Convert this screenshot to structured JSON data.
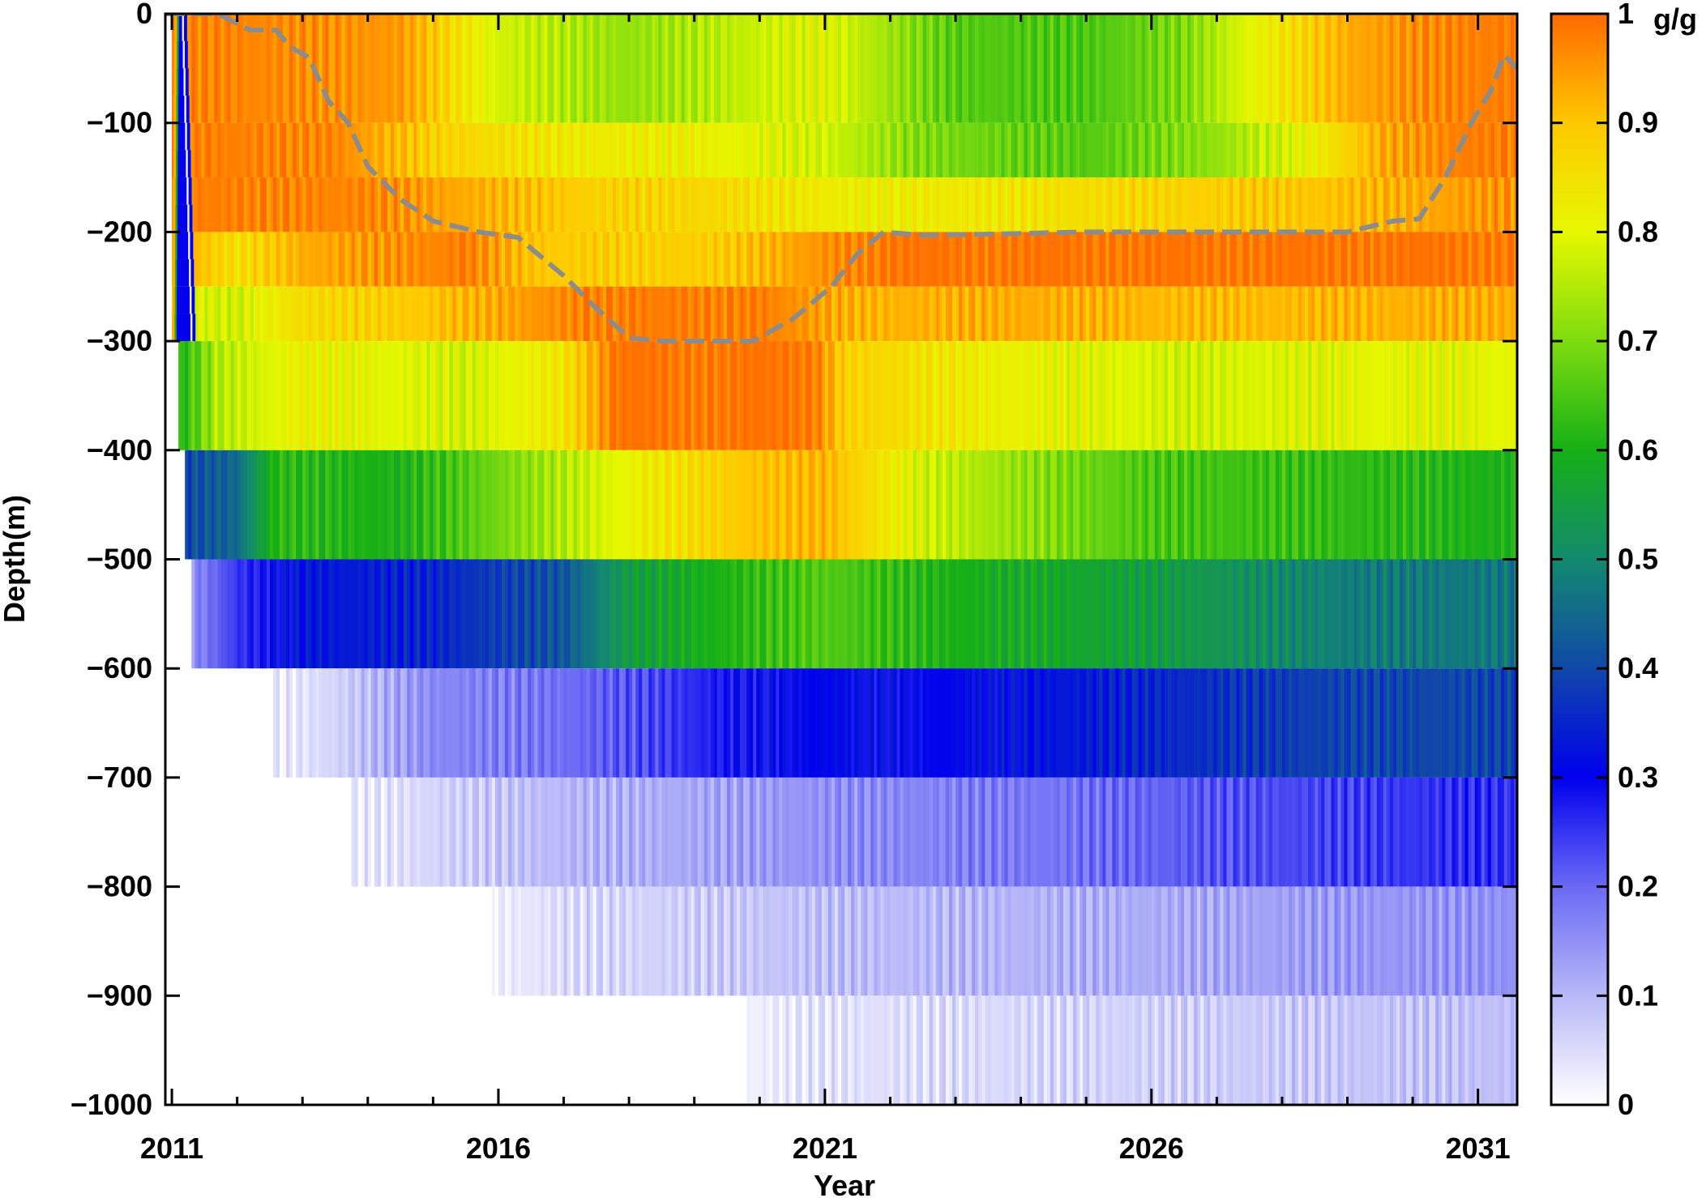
{
  "chart_data": {
    "type": "heatmap",
    "title": "",
    "xlabel": "Year",
    "ylabel": "Depth(m)",
    "x_ticks": [
      "2011",
      "2016",
      "2021",
      "2026",
      "2031"
    ],
    "y_ticks": [
      "0",
      "−100",
      "−200",
      "−300",
      "−400",
      "−500",
      "−600",
      "−700",
      "−800",
      "−900",
      "−1000"
    ],
    "xlim": [
      2010.9,
      2031.6
    ],
    "ylim": [
      -1000,
      0
    ],
    "colorbar": {
      "label": "g/g",
      "ticks": [
        "1",
        "0.9",
        "0.8",
        "0.7",
        "0.6",
        "0.5",
        "0.4",
        "0.3",
        "0.2",
        "0.1",
        "0"
      ],
      "range": [
        0,
        1
      ],
      "colormap": [
        {
          "v": 0.0,
          "color": "#ffffff"
        },
        {
          "v": 0.1,
          "color": "#b8b8f8"
        },
        {
          "v": 0.2,
          "color": "#6a6af4"
        },
        {
          "v": 0.3,
          "color": "#0000ee"
        },
        {
          "v": 0.4,
          "color": "#1048a8"
        },
        {
          "v": 0.5,
          "color": "#138a6e"
        },
        {
          "v": 0.6,
          "color": "#16b016"
        },
        {
          "v": 0.7,
          "color": "#7edc10"
        },
        {
          "v": 0.8,
          "color": "#e6f800"
        },
        {
          "v": 0.9,
          "color": "#ffc800"
        },
        {
          "v": 1.0,
          "color": "#ff6a00"
        }
      ]
    },
    "grid": false,
    "depth_layers": [
      {
        "top": 0,
        "bottom": -100,
        "start_year": 2011.0,
        "key_values": [
          [
            2011.0,
            0.98
          ],
          [
            2014.5,
            0.95
          ],
          [
            2016.0,
            0.78
          ],
          [
            2018.0,
            0.72
          ],
          [
            2021.0,
            0.8
          ],
          [
            2023.0,
            0.66
          ],
          [
            2025.0,
            0.65
          ],
          [
            2026.5,
            0.7
          ],
          [
            2027.5,
            0.8
          ],
          [
            2029.0,
            0.93
          ],
          [
            2030.3,
            0.97
          ],
          [
            2031.6,
            0.98
          ]
        ]
      },
      {
        "top": -100,
        "bottom": -150,
        "start_year": 2011.0,
        "key_values": [
          [
            2011.0,
            0.98
          ],
          [
            2013.5,
            0.97
          ],
          [
            2015.0,
            0.88
          ],
          [
            2017.0,
            0.83
          ],
          [
            2019.0,
            0.82
          ],
          [
            2021.0,
            0.78
          ],
          [
            2022.5,
            0.7
          ],
          [
            2025.0,
            0.66
          ],
          [
            2027.0,
            0.72
          ],
          [
            2028.5,
            0.82
          ],
          [
            2029.5,
            0.93
          ],
          [
            2030.8,
            0.98
          ],
          [
            2031.6,
            0.98
          ]
        ]
      },
      {
        "top": -150,
        "bottom": -200,
        "start_year": 2011.0,
        "key_values": [
          [
            2011.0,
            0.98
          ],
          [
            2014.0,
            0.97
          ],
          [
            2015.5,
            0.93
          ],
          [
            2017.5,
            0.88
          ],
          [
            2019.0,
            0.87
          ],
          [
            2020.5,
            0.84
          ],
          [
            2021.5,
            0.82
          ],
          [
            2024.0,
            0.84
          ],
          [
            2026.5,
            0.88
          ],
          [
            2028.5,
            0.9
          ],
          [
            2030.0,
            0.93
          ],
          [
            2031.6,
            0.96
          ]
        ]
      },
      {
        "top": -200,
        "bottom": -250,
        "start_year": 2011.0,
        "key_values": [
          [
            2011.0,
            0.95
          ],
          [
            2012.0,
            0.85
          ],
          [
            2013.0,
            0.93
          ],
          [
            2015.5,
            0.98
          ],
          [
            2016.5,
            0.9
          ],
          [
            2018.0,
            0.88
          ],
          [
            2019.5,
            0.89
          ],
          [
            2021.0,
            0.96
          ],
          [
            2022.0,
            0.99
          ],
          [
            2031.6,
            0.99
          ]
        ]
      },
      {
        "top": -250,
        "bottom": -300,
        "start_year": 2011.0,
        "key_values": [
          [
            2011.0,
            0.8
          ],
          [
            2012.0,
            0.78
          ],
          [
            2013.0,
            0.86
          ],
          [
            2015.0,
            0.9
          ],
          [
            2016.5,
            0.95
          ],
          [
            2017.5,
            0.98
          ],
          [
            2020.0,
            0.98
          ],
          [
            2021.5,
            0.92
          ],
          [
            2024.0,
            0.93
          ],
          [
            2027.0,
            0.91
          ],
          [
            2029.0,
            0.92
          ],
          [
            2031.6,
            0.93
          ]
        ]
      },
      {
        "top": -300,
        "bottom": -400,
        "start_year": 2011.1,
        "key_values": [
          [
            2011.1,
            0.6
          ],
          [
            2011.7,
            0.75
          ],
          [
            2013.0,
            0.82
          ],
          [
            2015.5,
            0.78
          ],
          [
            2017.0,
            0.84
          ],
          [
            2017.8,
            0.99
          ],
          [
            2020.8,
            0.99
          ],
          [
            2021.3,
            0.88
          ],
          [
            2023.5,
            0.82
          ],
          [
            2026.5,
            0.78
          ],
          [
            2029.0,
            0.8
          ],
          [
            2031.6,
            0.8
          ]
        ]
      },
      {
        "top": -400,
        "bottom": -500,
        "start_year": 2011.2,
        "key_values": [
          [
            2011.2,
            0.4
          ],
          [
            2012.0,
            0.45
          ],
          [
            2012.6,
            0.62
          ],
          [
            2014.5,
            0.6
          ],
          [
            2016.5,
            0.72
          ],
          [
            2018.5,
            0.84
          ],
          [
            2019.8,
            0.9
          ],
          [
            2021.0,
            0.92
          ],
          [
            2022.5,
            0.78
          ],
          [
            2024.0,
            0.72
          ],
          [
            2026.0,
            0.65
          ],
          [
            2028.5,
            0.63
          ],
          [
            2031.6,
            0.6
          ]
        ]
      },
      {
        "top": -500,
        "bottom": -600,
        "start_year": 2011.3,
        "key_values": [
          [
            2011.3,
            0.15
          ],
          [
            2012.0,
            0.25
          ],
          [
            2013.0,
            0.33
          ],
          [
            2015.0,
            0.35
          ],
          [
            2017.0,
            0.42
          ],
          [
            2018.0,
            0.55
          ],
          [
            2020.0,
            0.63
          ],
          [
            2021.0,
            0.66
          ],
          [
            2023.0,
            0.6
          ],
          [
            2025.0,
            0.57
          ],
          [
            2027.0,
            0.53
          ],
          [
            2029.0,
            0.48
          ],
          [
            2031.6,
            0.47
          ]
        ]
      },
      {
        "top": -600,
        "bottom": -700,
        "start_year": 2012.5,
        "key_values": [
          [
            2012.5,
            0.02
          ],
          [
            2013.5,
            0.06
          ],
          [
            2015.0,
            0.16
          ],
          [
            2016.5,
            0.18
          ],
          [
            2018.0,
            0.22
          ],
          [
            2019.5,
            0.28
          ],
          [
            2021.0,
            0.31
          ],
          [
            2022.5,
            0.3
          ],
          [
            2024.5,
            0.33
          ],
          [
            2026.5,
            0.36
          ],
          [
            2028.5,
            0.39
          ],
          [
            2030.5,
            0.4
          ],
          [
            2031.6,
            0.39
          ]
        ]
      },
      {
        "top": -700,
        "bottom": -800,
        "start_year": 2013.7,
        "key_values": [
          [
            2013.7,
            0.02
          ],
          [
            2015.0,
            0.06
          ],
          [
            2017.0,
            0.1
          ],
          [
            2019.0,
            0.12
          ],
          [
            2021.0,
            0.15
          ],
          [
            2023.0,
            0.17
          ],
          [
            2025.0,
            0.19
          ],
          [
            2027.0,
            0.22
          ],
          [
            2029.0,
            0.24
          ],
          [
            2031.0,
            0.26
          ],
          [
            2031.6,
            0.25
          ]
        ]
      },
      {
        "top": -800,
        "bottom": -900,
        "start_year": 2015.9,
        "key_values": [
          [
            2015.9,
            0.02
          ],
          [
            2017.0,
            0.05
          ],
          [
            2019.0,
            0.07
          ],
          [
            2021.0,
            0.09
          ],
          [
            2023.0,
            0.1
          ],
          [
            2025.0,
            0.11
          ],
          [
            2027.0,
            0.12
          ],
          [
            2029.0,
            0.14
          ],
          [
            2031.6,
            0.15
          ]
        ]
      },
      {
        "top": -900,
        "bottom": -1000,
        "start_year": 2019.8,
        "key_values": [
          [
            2019.8,
            0.02
          ],
          [
            2021.0,
            0.04
          ],
          [
            2023.0,
            0.05
          ],
          [
            2025.0,
            0.06
          ],
          [
            2027.0,
            0.07
          ],
          [
            2029.0,
            0.08
          ],
          [
            2031.6,
            0.09
          ]
        ]
      }
    ],
    "wedge_layers": [
      {
        "top": 0,
        "bottom": -300,
        "x_range": [
          2010.95,
          2011.38
        ]
      }
    ],
    "dashed_line": {
      "color": "#8c8c8c",
      "points": [
        [
          2010.9,
          0
        ],
        [
          2011.7,
          0
        ],
        [
          2012.2,
          -15
        ],
        [
          2012.6,
          -15
        ],
        [
          2012.8,
          -30
        ],
        [
          2013.1,
          -40
        ],
        [
          2013.4,
          -80
        ],
        [
          2013.7,
          -100
        ],
        [
          2014.0,
          -140
        ],
        [
          2014.5,
          -170
        ],
        [
          2015.0,
          -190
        ],
        [
          2015.7,
          -200
        ],
        [
          2016.3,
          -205
        ],
        [
          2017.0,
          -240
        ],
        [
          2017.5,
          -270
        ],
        [
          2018.0,
          -297
        ],
        [
          2018.5,
          -300
        ],
        [
          2019.9,
          -300
        ],
        [
          2020.5,
          -280
        ],
        [
          2021.1,
          -250
        ],
        [
          2021.5,
          -220
        ],
        [
          2021.9,
          -200
        ],
        [
          2022.5,
          -203
        ],
        [
          2023.5,
          -202
        ],
        [
          2025.0,
          -200
        ],
        [
          2027.0,
          -200
        ],
        [
          2029.0,
          -200
        ],
        [
          2029.7,
          -190
        ],
        [
          2030.1,
          -188
        ],
        [
          2030.5,
          -150
        ],
        [
          2030.9,
          -100
        ],
        [
          2031.2,
          -70
        ],
        [
          2031.4,
          -38
        ],
        [
          2031.6,
          -50
        ]
      ]
    }
  }
}
